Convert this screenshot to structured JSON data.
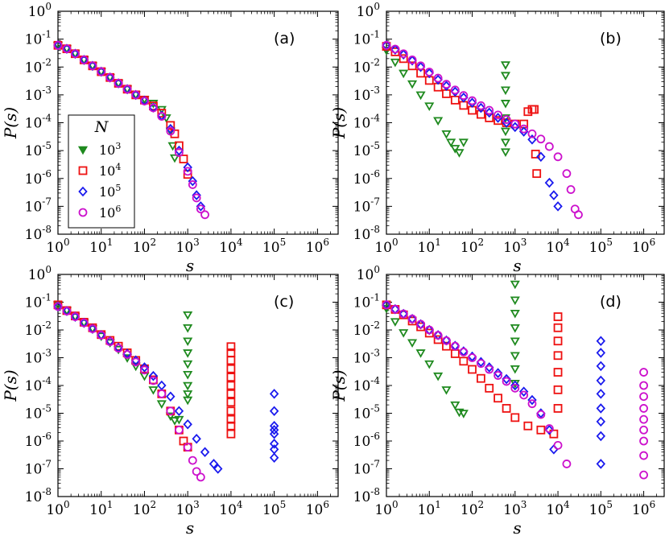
{
  "chart_data": [
    {
      "type": "scatter",
      "panel_label": "(a)",
      "xlabel": "s",
      "ylabel": "P(s)",
      "xscale": "log",
      "yscale": "log",
      "xlim": [
        1,
        3000000
      ],
      "ylim": [
        1e-08,
        1
      ],
      "series": [
        {
          "name": "10^3",
          "marker": "triangle-down",
          "color": "#1f8a1f",
          "x": [
            1,
            1.6,
            2.5,
            4,
            6.3,
            10,
            16,
            25,
            40,
            63,
            100,
            160,
            250,
            320,
            400,
            450,
            500
          ],
          "y": [
            0.06,
            0.045,
            0.03,
            0.018,
            0.011,
            0.0068,
            0.0042,
            0.0026,
            0.0016,
            0.001,
            0.0007,
            0.0005,
            0.0003,
            0.00015,
            5e-05,
            1.5e-05,
            5.5e-06
          ]
        },
        {
          "name": "10^4",
          "marker": "square",
          "color": "#ee1111",
          "x": [
            1,
            1.6,
            2.5,
            4,
            6.3,
            10,
            16,
            25,
            40,
            63,
            100,
            160,
            250,
            400,
            500,
            630,
            800,
            1000
          ],
          "y": [
            0.06,
            0.045,
            0.03,
            0.018,
            0.011,
            0.0068,
            0.0042,
            0.0026,
            0.0016,
            0.001,
            0.00065,
            0.0004,
            0.00022,
            8e-05,
            4e-05,
            1.5e-05,
            5e-06,
            1.4e-06
          ]
        },
        {
          "name": "10^5",
          "marker": "diamond",
          "color": "#1a1aee",
          "x": [
            1,
            1.6,
            2.5,
            4,
            6.3,
            10,
            16,
            25,
            40,
            63,
            100,
            160,
            250,
            400,
            630,
            1000,
            1300,
            1600,
            2000
          ],
          "y": [
            0.06,
            0.045,
            0.03,
            0.018,
            0.011,
            0.0068,
            0.0042,
            0.0026,
            0.0016,
            0.001,
            0.00062,
            0.00035,
            0.00018,
            6e-05,
            1e-05,
            2.5e-06,
            8e-07,
            2.5e-07,
            1e-07
          ]
        },
        {
          "name": "10^6",
          "marker": "circle",
          "color": "#cc10cc",
          "x": [
            1,
            1.6,
            2.5,
            4,
            6.3,
            10,
            16,
            25,
            40,
            63,
            100,
            160,
            250,
            400,
            630,
            1000,
            1300,
            1600,
            2000,
            2500
          ],
          "y": [
            0.06,
            0.045,
            0.03,
            0.018,
            0.011,
            0.0068,
            0.0042,
            0.0026,
            0.0016,
            0.001,
            0.0006,
            0.00034,
            0.00017,
            5e-05,
            8.5e-06,
            1.8e-06,
            6e-07,
            2e-07,
            8e-08,
            5e-08
          ]
        }
      ]
    },
    {
      "type": "scatter",
      "panel_label": "(b)",
      "xlabel": "s",
      "ylabel": "P(s)",
      "xscale": "log",
      "yscale": "log",
      "xlim": [
        1,
        3000000
      ],
      "ylim": [
        1e-08,
        1
      ],
      "series": [
        {
          "name": "10^3",
          "marker": "triangle-down",
          "color": "#1f8a1f",
          "x": [
            1,
            1.6,
            2.5,
            4,
            6.3,
            10,
            16,
            25,
            32,
            40,
            50,
            63,
            600,
            600,
            600,
            600,
            600,
            600,
            600,
            600
          ],
          "y": [
            0.04,
            0.015,
            0.006,
            0.0025,
            0.001,
            0.0004,
            0.00012,
            4e-05,
            2e-05,
            1.2e-05,
            8.5e-06,
            2e-05,
            0.012,
            0.005,
            0.0015,
            0.0005,
            0.00015,
            5e-05,
            2e-05,
            9e-06
          ]
        },
        {
          "name": "10^4",
          "marker": "square",
          "color": "#ee1111",
          "x": [
            1,
            1.6,
            2.5,
            4,
            6.3,
            10,
            16,
            25,
            40,
            63,
            100,
            160,
            250,
            400,
            630,
            1000,
            1600,
            2000,
            2500,
            2800,
            3000,
            3200
          ],
          "y": [
            0.055,
            0.035,
            0.02,
            0.011,
            0.006,
            0.0033,
            0.0019,
            0.0011,
            0.00065,
            0.00042,
            0.00028,
            0.0002,
            0.00015,
            0.00012,
            0.0001,
            9e-05,
            9e-05,
            0.00025,
            0.0003,
            0.0003,
            7.5e-06,
            1.5e-06
          ]
        },
        {
          "name": "10^5",
          "marker": "diamond",
          "color": "#1a1aee",
          "x": [
            1,
            1.6,
            2.5,
            4,
            6.3,
            10,
            16,
            25,
            40,
            63,
            100,
            160,
            250,
            400,
            630,
            1000,
            1600,
            2500,
            4000,
            6300,
            8000,
            10000
          ],
          "y": [
            0.06,
            0.042,
            0.028,
            0.017,
            0.01,
            0.006,
            0.0035,
            0.0021,
            0.0013,
            0.0008,
            0.00052,
            0.00034,
            0.00023,
            0.00015,
            0.0001,
            7e-05,
            4.8e-05,
            2.5e-05,
            6e-06,
            7e-07,
            2.5e-07,
            1e-07
          ]
        },
        {
          "name": "10^6",
          "marker": "circle",
          "color": "#cc10cc",
          "x": [
            1,
            1.6,
            2.5,
            4,
            6.3,
            10,
            16,
            25,
            40,
            63,
            100,
            160,
            250,
            400,
            630,
            1000,
            1600,
            2500,
            4000,
            6300,
            10000,
            16000,
            20000,
            25000,
            30000
          ],
          "y": [
            0.06,
            0.044,
            0.03,
            0.018,
            0.011,
            0.0066,
            0.004,
            0.0024,
            0.0015,
            0.00095,
            0.00062,
            0.00041,
            0.00028,
            0.00019,
            0.00013,
            9e-05,
            6e-05,
            4e-05,
            2.6e-05,
            1.4e-05,
            6e-06,
            1.5e-06,
            4e-07,
            8e-08,
            5e-08
          ]
        }
      ]
    },
    {
      "type": "scatter",
      "panel_label": "(c)",
      "xlabel": "s",
      "ylabel": "P(s)",
      "xscale": "log",
      "yscale": "log",
      "xlim": [
        1,
        3000000
      ],
      "ylim": [
        1e-08,
        1
      ],
      "series": [
        {
          "name": "10^3",
          "marker": "triangle-down",
          "color": "#1f8a1f",
          "x": [
            1,
            1.6,
            2.5,
            4,
            6.3,
            10,
            16,
            25,
            40,
            63,
            100,
            160,
            250,
            400,
            500,
            630,
            1000,
            1000,
            1000,
            1000,
            1000,
            1000,
            1000,
            1000,
            1000
          ],
          "y": [
            0.08,
            0.05,
            0.03,
            0.018,
            0.011,
            0.006,
            0.0035,
            0.002,
            0.001,
            0.0005,
            0.00022,
            7e-05,
            2.2e-05,
            8e-06,
            5.5e-06,
            6e-06,
            0.035,
            0.012,
            0.004,
            0.0015,
            0.0006,
            0.00025,
            0.0001,
            5e-05,
            3e-05
          ]
        },
        {
          "name": "10^4",
          "marker": "square",
          "color": "#ee1111",
          "x": [
            1,
            1.6,
            2.5,
            4,
            6.3,
            10,
            16,
            25,
            40,
            63,
            100,
            160,
            250,
            400,
            630,
            800,
            1000,
            10000,
            10000,
            10000,
            10000,
            10000,
            10000,
            10000,
            10000,
            10000,
            10000,
            10000,
            10000
          ],
          "y": [
            0.08,
            0.05,
            0.032,
            0.019,
            0.012,
            0.0068,
            0.0042,
            0.0026,
            0.0015,
            0.0008,
            0.0004,
            0.00016,
            5e-05,
            1.2e-05,
            2.5e-06,
            1e-06,
            6e-07,
            0.0025,
            0.0015,
            0.0008,
            0.0004,
            0.0002,
            0.0001,
            5e-05,
            2.5e-05,
            1.2e-05,
            6e-06,
            3.5e-06,
            1.8e-06
          ]
        },
        {
          "name": "10^5",
          "marker": "diamond",
          "color": "#1a1aee",
          "x": [
            1,
            1.6,
            2.5,
            4,
            6.3,
            10,
            16,
            25,
            40,
            63,
            100,
            160,
            250,
            400,
            630,
            1000,
            1600,
            2500,
            4000,
            5000,
            100000,
            100000,
            100000,
            100000,
            100000,
            100000,
            100000,
            100000
          ],
          "y": [
            0.07,
            0.048,
            0.03,
            0.018,
            0.011,
            0.0065,
            0.0039,
            0.0023,
            0.0014,
            0.0008,
            0.00045,
            0.00022,
            0.0001,
            4e-05,
            1.2e-05,
            4e-06,
            1.2e-06,
            4e-07,
            1.5e-07,
            1e-07,
            5e-05,
            1.2e-05,
            3.5e-06,
            2.5e-06,
            1.8e-06,
            8e-07,
            5e-07,
            2.5e-07
          ]
        },
        {
          "name": "10^6",
          "marker": "circle",
          "color": "#cc10cc",
          "x": [
            1,
            1.6,
            2.5,
            4,
            6.3,
            10,
            16,
            25,
            40,
            63,
            100,
            160,
            250,
            400,
            630,
            1000,
            1300,
            1600,
            2000
          ],
          "y": [
            0.07,
            0.048,
            0.03,
            0.018,
            0.011,
            0.0065,
            0.0038,
            0.0022,
            0.0013,
            0.0007,
            0.00036,
            0.00015,
            5e-05,
            1.2e-05,
            2.5e-06,
            6e-07,
            2e-07,
            8e-08,
            5e-08
          ]
        }
      ]
    },
    {
      "type": "scatter",
      "panel_label": "(d)",
      "xlabel": "s",
      "ylabel": "P(s)",
      "xscale": "log",
      "yscale": "log",
      "xlim": [
        1,
        3000000
      ],
      "ylim": [
        1e-08,
        1
      ],
      "series": [
        {
          "name": "10^3",
          "marker": "triangle-down",
          "color": "#1f8a1f",
          "x": [
            1,
            1.6,
            2.5,
            4,
            6.3,
            10,
            16,
            25,
            40,
            50,
            63,
            1000,
            1000,
            1000,
            1000,
            1000,
            1000,
            1000,
            1000
          ],
          "y": [
            0.06,
            0.02,
            0.008,
            0.0035,
            0.0015,
            0.0006,
            0.00022,
            7e-05,
            2e-05,
            1.1e-05,
            1e-05,
            0.45,
            0.12,
            0.04,
            0.012,
            0.004,
            0.0012,
            0.0004,
            0.00012
          ]
        },
        {
          "name": "10^4",
          "marker": "square",
          "color": "#ee1111",
          "x": [
            1,
            1.6,
            2.5,
            4,
            6.3,
            10,
            16,
            25,
            40,
            63,
            100,
            160,
            250,
            400,
            630,
            1000,
            2000,
            4000,
            8000,
            10000,
            10000,
            10000,
            10000,
            10000,
            10000,
            10000
          ],
          "y": [
            0.08,
            0.055,
            0.035,
            0.021,
            0.013,
            0.0077,
            0.0045,
            0.0026,
            0.0014,
            0.00075,
            0.00038,
            0.00018,
            8e-05,
            3.5e-05,
            1.5e-05,
            7e-06,
            3.5e-06,
            2.5e-06,
            1.8e-06,
            0.03,
            0.012,
            0.004,
            0.0012,
            0.0003,
            7e-05,
            1.5e-05
          ]
        },
        {
          "name": "10^5",
          "marker": "diamond",
          "color": "#1a1aee",
          "x": [
            1,
            1.6,
            2.5,
            4,
            6.3,
            10,
            16,
            25,
            40,
            63,
            100,
            160,
            250,
            400,
            630,
            1000,
            1600,
            2500,
            4000,
            6300,
            8000,
            100000,
            100000,
            100000,
            100000,
            100000,
            100000,
            100000,
            100000,
            100000
          ],
          "y": [
            0.08,
            0.056,
            0.038,
            0.025,
            0.016,
            0.01,
            0.0065,
            0.0042,
            0.0027,
            0.0017,
            0.0011,
            0.0007,
            0.00045,
            0.00028,
            0.00017,
            0.0001,
            6e-05,
            3e-05,
            1e-05,
            2.5e-06,
            5e-07,
            0.004,
            0.0015,
            0.0005,
            0.00015,
            5e-05,
            1.5e-05,
            5e-06,
            1.5e-06,
            1.5e-07
          ]
        },
        {
          "name": "10^6",
          "marker": "circle",
          "color": "#cc10cc",
          "x": [
            1,
            1.6,
            2.5,
            4,
            6.3,
            10,
            16,
            25,
            40,
            63,
            100,
            160,
            250,
            400,
            630,
            1000,
            1600,
            2500,
            4000,
            6300,
            10000,
            16000,
            1000000,
            1000000,
            1000000,
            1000000,
            1000000,
            1000000,
            1000000,
            1000000,
            1000000
          ],
          "y": [
            0.08,
            0.056,
            0.038,
            0.025,
            0.016,
            0.01,
            0.0064,
            0.0041,
            0.0026,
            0.0016,
            0.001,
            0.00062,
            0.00038,
            0.00023,
            0.00014,
            8e-05,
            4.5e-05,
            2.2e-05,
            9e-06,
            2.8e-06,
            7e-07,
            1.5e-07,
            0.0003,
            0.0001,
            4e-05,
            1.5e-05,
            6e-06,
            2.5e-06,
            1e-06,
            3e-07,
            6e-08
          ]
        }
      ]
    }
  ],
  "legend": {
    "title": "N",
    "entries": [
      {
        "base": "10",
        "exp": "3"
      },
      {
        "base": "10",
        "exp": "4"
      },
      {
        "base": "10",
        "exp": "5"
      },
      {
        "base": "10",
        "exp": "6"
      }
    ]
  },
  "axis_labels": {
    "x": "s",
    "y": "P(s)"
  },
  "x_ticks": [
    {
      "base": "10",
      "exp": "0"
    },
    {
      "base": "10",
      "exp": "1"
    },
    {
      "base": "10",
      "exp": "2"
    },
    {
      "base": "10",
      "exp": "3"
    },
    {
      "base": "10",
      "exp": "4"
    },
    {
      "base": "10",
      "exp": "5"
    },
    {
      "base": "10",
      "exp": "6"
    }
  ],
  "y_ticks": [
    {
      "base": "10",
      "exp": "0"
    },
    {
      "base": "10",
      "exp": "-1"
    },
    {
      "base": "10",
      "exp": "-2"
    },
    {
      "base": "10",
      "exp": "-3"
    },
    {
      "base": "10",
      "exp": "-4"
    },
    {
      "base": "10",
      "exp": "-5"
    },
    {
      "base": "10",
      "exp": "-6"
    },
    {
      "base": "10",
      "exp": "-7"
    },
    {
      "base": "10",
      "exp": "-8"
    }
  ]
}
